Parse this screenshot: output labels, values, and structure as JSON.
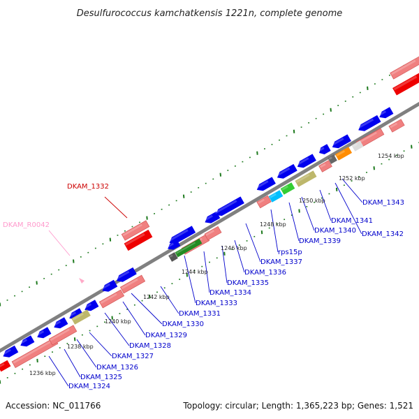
{
  "title": "Desulfurococcus kamchatkensis 1221n, complete genome",
  "footer": {
    "accession": "Accession: NC_011766",
    "summary": "Topology: circular; Length: 1,365,223 bp; Genes: 1,521"
  },
  "colors": {
    "cds": "#0000ee",
    "cds_rna": "#ee0000",
    "trna": "#f08080",
    "pseudo": "#ffaac8",
    "backbone": "#808080",
    "tick": "#1e7a1e",
    "label_blue": "#0000cc",
    "label_red": "#cc0000",
    "label_pink": "#ff99cc"
  },
  "scale_labels": [
    "1236 kbp",
    "1238 kbp",
    "1240 kbp",
    "1242 kbp",
    "1244 kbp",
    "1246 kbp",
    "1248 kbp",
    "1250 kbp",
    "1252 kbp",
    "1254 kbp"
  ],
  "gene_labels": [
    {
      "text": "DKAM_1324",
      "kind": "blue"
    },
    {
      "text": "DKAM_1325",
      "kind": "blue"
    },
    {
      "text": "DKAM_1326",
      "kind": "blue"
    },
    {
      "text": "DKAM_1327",
      "kind": "blue"
    },
    {
      "text": "DKAM_1328",
      "kind": "blue"
    },
    {
      "text": "DKAM_1329",
      "kind": "blue"
    },
    {
      "text": "DKAM_1330",
      "kind": "blue"
    },
    {
      "text": "DKAM_1331",
      "kind": "blue"
    },
    {
      "text": "DKAM_1333",
      "kind": "blue"
    },
    {
      "text": "DKAM_1334",
      "kind": "blue"
    },
    {
      "text": "DKAM_1335",
      "kind": "blue"
    },
    {
      "text": "DKAM_1336",
      "kind": "blue"
    },
    {
      "text": "DKAM_1337",
      "kind": "blue"
    },
    {
      "text": "rps15p",
      "kind": "blue"
    },
    {
      "text": "DKAM_1339",
      "kind": "blue"
    },
    {
      "text": "DKAM_1340",
      "kind": "blue"
    },
    {
      "text": "DKAM_1341",
      "kind": "blue"
    },
    {
      "text": "DKAM_1342",
      "kind": "blue"
    },
    {
      "text": "DKAM_1343",
      "kind": "blue"
    },
    {
      "text": "DKAM_1332",
      "kind": "red"
    },
    {
      "text": "DKAM_R0042",
      "kind": "pink"
    }
  ]
}
